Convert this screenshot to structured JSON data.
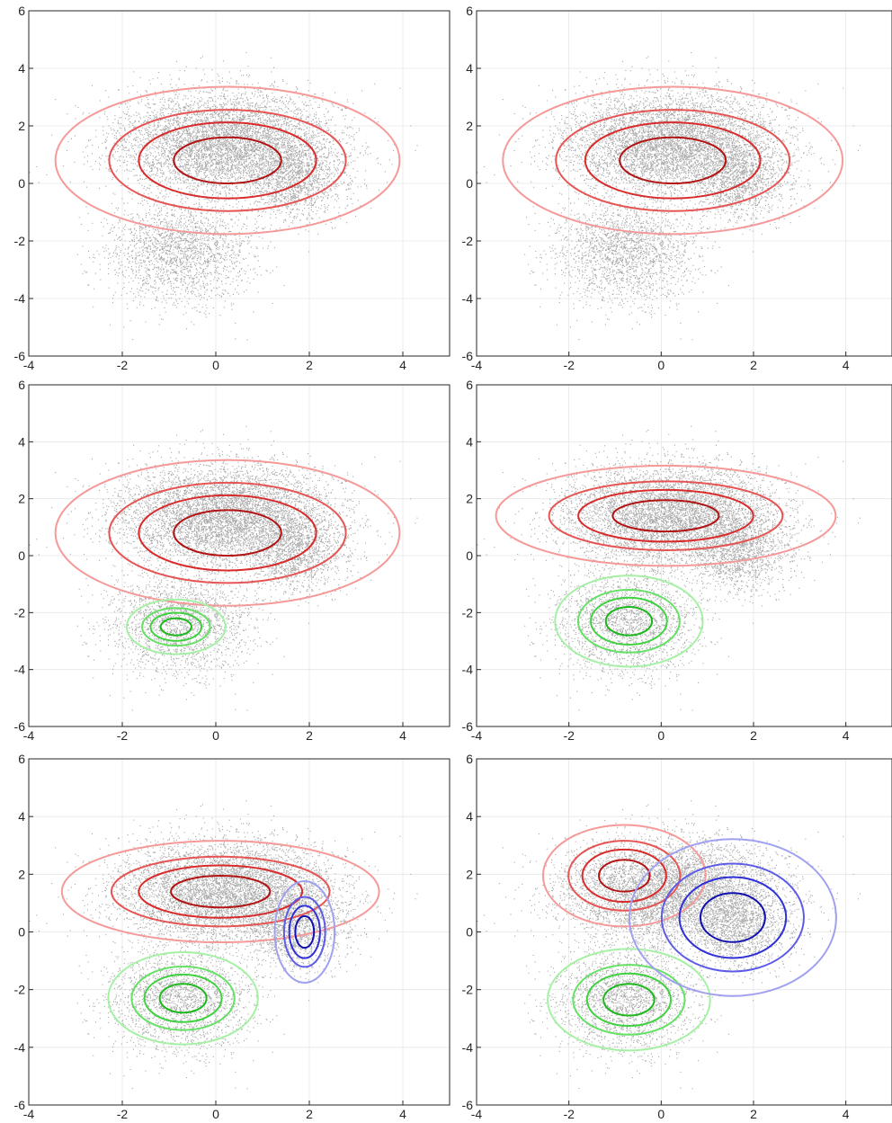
{
  "chart_data": [
    {
      "type": "scatter",
      "panel": 1,
      "xlim": [
        -4,
        5
      ],
      "ylim": [
        -6,
        6
      ],
      "xticks": [
        -4,
        -2,
        0,
        2,
        4
      ],
      "yticks": [
        -6,
        -4,
        -2,
        0,
        2,
        4,
        6
      ],
      "grid": true,
      "point_color": "#a8a8a8",
      "components": [
        {
          "color_scheme": "red",
          "mean": [
            0.25,
            0.8
          ],
          "sigma": [
            1.15,
            0.8
          ],
          "levels_sigma_multiples": [
            1,
            1.65,
            2.2,
            3.2
          ]
        }
      ]
    },
    {
      "type": "scatter",
      "panel": 2,
      "xlim": [
        -4,
        5
      ],
      "ylim": [
        -6,
        6
      ],
      "xticks": [
        -4,
        -2,
        0,
        2,
        4
      ],
      "yticks": [
        -6,
        -4,
        -2,
        0,
        2,
        4,
        6
      ],
      "grid": true,
      "point_color": "#a8a8a8",
      "components": [
        {
          "color_scheme": "red",
          "mean": [
            0.25,
            0.8
          ],
          "sigma": [
            1.15,
            0.8
          ],
          "levels_sigma_multiples": [
            1,
            1.65,
            2.2,
            3.2
          ]
        }
      ]
    },
    {
      "type": "scatter",
      "panel": 3,
      "xlim": [
        -4,
        5
      ],
      "ylim": [
        -6,
        6
      ],
      "xticks": [
        -4,
        -2,
        0,
        2,
        4
      ],
      "yticks": [
        -6,
        -4,
        -2,
        0,
        2,
        4,
        6
      ],
      "grid": true,
      "point_color": "#a8a8a8",
      "components": [
        {
          "color_scheme": "red",
          "mean": [
            0.25,
            0.8
          ],
          "sigma": [
            1.15,
            0.8
          ],
          "levels_sigma_multiples": [
            1,
            1.65,
            2.2,
            3.2
          ]
        },
        {
          "color_scheme": "green",
          "mean": [
            -0.85,
            -2.5
          ],
          "sigma": [
            0.33,
            0.3
          ],
          "levels_sigma_multiples": [
            1,
            1.65,
            2.2,
            3.2
          ]
        }
      ]
    },
    {
      "type": "scatter",
      "panel": 4,
      "xlim": [
        -4,
        5
      ],
      "ylim": [
        -6,
        6
      ],
      "xticks": [
        -4,
        -2,
        0,
        2,
        4
      ],
      "yticks": [
        -6,
        -4,
        -2,
        0,
        2,
        4,
        6
      ],
      "grid": true,
      "point_color": "#a8a8a8",
      "components": [
        {
          "color_scheme": "red",
          "mean": [
            0.1,
            1.4
          ],
          "sigma": [
            1.15,
            0.55
          ],
          "levels_sigma_multiples": [
            1,
            1.65,
            2.2,
            3.2
          ]
        },
        {
          "color_scheme": "green",
          "mean": [
            -0.7,
            -2.3
          ],
          "sigma": [
            0.5,
            0.5
          ],
          "levels_sigma_multiples": [
            1,
            1.65,
            2.2,
            3.2
          ]
        }
      ]
    },
    {
      "type": "scatter",
      "panel": 5,
      "xlim": [
        -4,
        5
      ],
      "ylim": [
        -6,
        6
      ],
      "xticks": [
        -4,
        -2,
        0,
        2,
        4
      ],
      "yticks": [
        -6,
        -4,
        -2,
        0,
        2,
        4,
        6
      ],
      "grid": true,
      "point_color": "#a8a8a8",
      "components": [
        {
          "color_scheme": "red",
          "mean": [
            0.1,
            1.4
          ],
          "sigma": [
            1.06,
            0.55
          ],
          "levels_sigma_multiples": [
            1,
            1.65,
            2.2,
            3.2
          ]
        },
        {
          "color_scheme": "green",
          "mean": [
            -0.7,
            -2.3
          ],
          "sigma": [
            0.5,
            0.5
          ],
          "levels_sigma_multiples": [
            1,
            1.65,
            2.2,
            3.2
          ]
        },
        {
          "color_scheme": "blue",
          "mean": [
            1.9,
            0.0
          ],
          "sigma": [
            0.2,
            0.55
          ],
          "levels_sigma_multiples": [
            1,
            1.65,
            2.2,
            3.2
          ]
        }
      ]
    },
    {
      "type": "scatter",
      "panel": 6,
      "xlim": [
        -4,
        5
      ],
      "ylim": [
        -6,
        6
      ],
      "xticks": [
        -4,
        -2,
        0,
        2,
        4
      ],
      "yticks": [
        -6,
        -4,
        -2,
        0,
        2,
        4,
        6
      ],
      "grid": true,
      "point_color": "#a8a8a8",
      "components": [
        {
          "color_scheme": "red",
          "mean": [
            -0.8,
            1.95
          ],
          "sigma": [
            0.55,
            0.55
          ],
          "levels_sigma_multiples": [
            1,
            1.65,
            2.2,
            3.2
          ]
        },
        {
          "color_scheme": "green",
          "mean": [
            -0.7,
            -2.35
          ],
          "sigma": [
            0.55,
            0.55
          ],
          "levels_sigma_multiples": [
            1,
            1.65,
            2.2,
            3.2
          ]
        },
        {
          "color_scheme": "blue",
          "mean": [
            1.55,
            0.5
          ],
          "sigma": [
            0.7,
            0.85
          ],
          "levels_sigma_multiples": [
            1,
            1.65,
            2.2,
            3.2
          ]
        }
      ]
    }
  ],
  "color_schemes": {
    "red": [
      "#b31212",
      "#d92b2b",
      "#e65454",
      "#f59999"
    ],
    "green": [
      "#1cb81c",
      "#3fd13f",
      "#66e066",
      "#a6f0a6"
    ],
    "blue": [
      "#1010b0",
      "#3030d9",
      "#5c5ce6",
      "#a0a0f0"
    ]
  },
  "data_clusters": [
    {
      "mean": [
        0.2,
        1.4
      ],
      "sigma": [
        1.15,
        0.9
      ],
      "weight": 0.62
    },
    {
      "mean": [
        -0.8,
        -2.4
      ],
      "sigma": [
        0.75,
        0.9
      ],
      "weight": 0.23
    },
    {
      "mean": [
        1.7,
        0.2
      ],
      "sigma": [
        0.55,
        0.75
      ],
      "weight": 0.15
    }
  ],
  "sample_count": 9000
}
